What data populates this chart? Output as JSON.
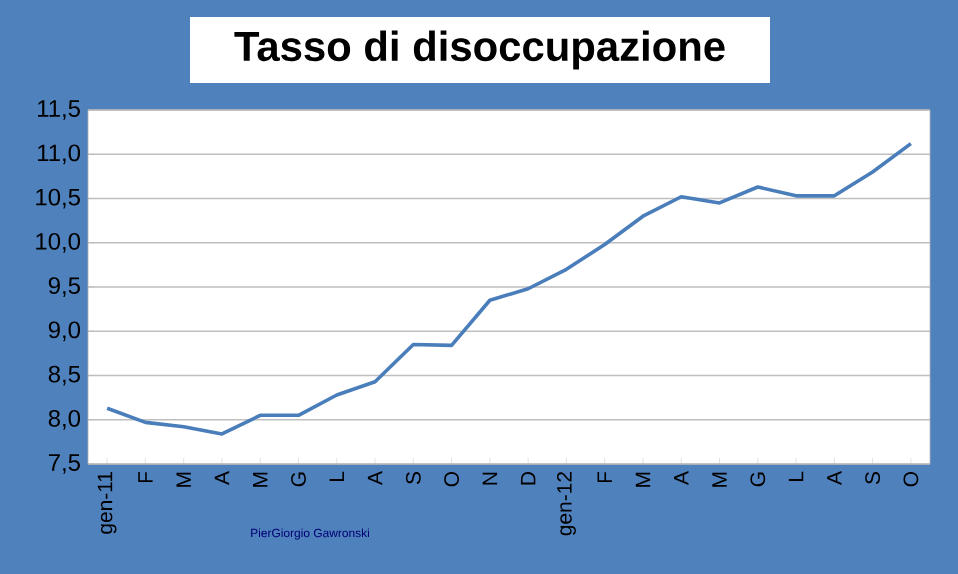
{
  "chart_data": {
    "type": "line",
    "title": "Tasso di disoccupazione",
    "categories": [
      "gen-11",
      "F",
      "M",
      "A",
      "M",
      "G",
      "L",
      "A",
      "S",
      "O",
      "N",
      "D",
      "gen-12",
      "F",
      "M",
      "A",
      "M",
      "G",
      "L",
      "A",
      "S",
      "O"
    ],
    "series": [
      {
        "color": "#4a7ebb",
        "values": [
          8.13,
          7.97,
          7.92,
          7.84,
          8.05,
          8.05,
          8.28,
          8.43,
          8.85,
          8.84,
          9.35,
          9.48,
          9.7,
          9.98,
          10.3,
          10.52,
          10.45,
          10.63,
          10.53,
          10.53,
          10.8,
          11.12
        ]
      }
    ],
    "ylim": [
      7.5,
      11.5
    ],
    "yticks": [
      {
        "value": 7.5,
        "label": "7,5"
      },
      {
        "value": 8.0,
        "label": "8,0"
      },
      {
        "value": 8.5,
        "label": "8,5"
      },
      {
        "value": 9.0,
        "label": "9,0"
      },
      {
        "value": 9.5,
        "label": "9,5"
      },
      {
        "value": 10.0,
        "label": "10,0"
      },
      {
        "value": 10.5,
        "label": "10,5"
      },
      {
        "value": 11.0,
        "label": "11,0"
      },
      {
        "value": 11.5,
        "label": "11,5"
      }
    ],
    "grid": "y",
    "annotations": [
      "PierGiorgio Gawronski"
    ]
  }
}
